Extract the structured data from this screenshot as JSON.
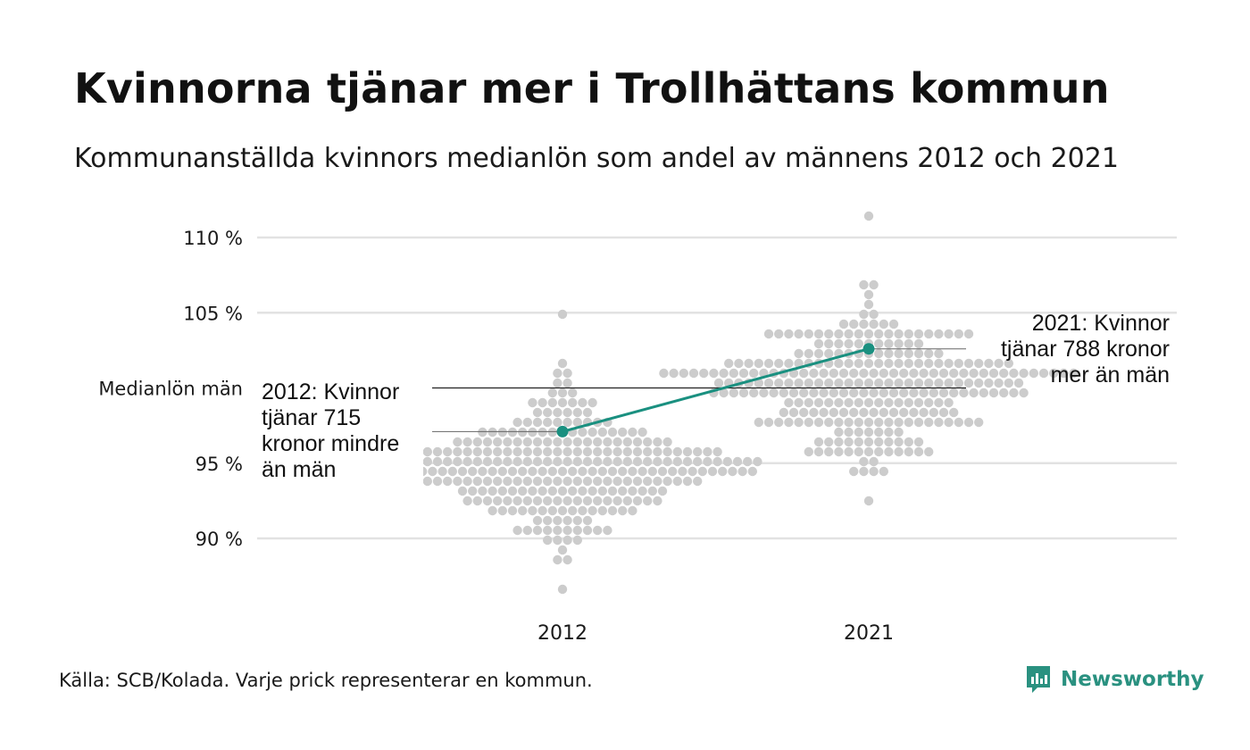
{
  "title": "Kvinnorna tjänar mer i Trollhättans kommun",
  "subtitle": "Kommunanställda kvinnors medianlön som andel av männens 2012 och 2021",
  "footer": "Källa: SCB/Kolada. Varje prick representerar en kommun.",
  "brand": {
    "name": "Newsworthy",
    "icon": "newsworthy-logo-icon",
    "color": "#2a9180"
  },
  "chart_data": {
    "type": "scatter",
    "y_ticks": [
      {
        "value": 90,
        "label": "90 %"
      },
      {
        "value": 95,
        "label": "95 %"
      },
      {
        "value": 100,
        "label": "Medianlön män"
      },
      {
        "value": 105,
        "label": "105 %"
      },
      {
        "value": 110,
        "label": "110 %"
      }
    ],
    "ylim": [
      86,
      112
    ],
    "categories": [
      "2012",
      "2021"
    ],
    "distributions": [
      {
        "category": "2012",
        "center": 94.9,
        "spread": 2.3,
        "min": 86.4,
        "max": 105.2,
        "count": 290
      },
      {
        "category": "2021",
        "center": 100.4,
        "spread": 2.5,
        "min": 92.6,
        "max": 111.3,
        "count": 290
      }
    ],
    "highlight": {
      "name": "Trollhättan",
      "color": "#1a9080",
      "points": [
        {
          "category": "2012",
          "value": 97.1
        },
        {
          "category": "2021",
          "value": 102.6
        }
      ]
    },
    "annotations": [
      {
        "category": "2012",
        "lines": [
          "2012: Kvinnor",
          "tjänar 715",
          "kronor mindre",
          "än män"
        ]
      },
      {
        "category": "2021",
        "lines": [
          "2021: Kvinnor",
          "tjänar 788 kronor",
          "mer än män"
        ]
      }
    ],
    "dot_color": "#cccccc",
    "grid": true
  }
}
